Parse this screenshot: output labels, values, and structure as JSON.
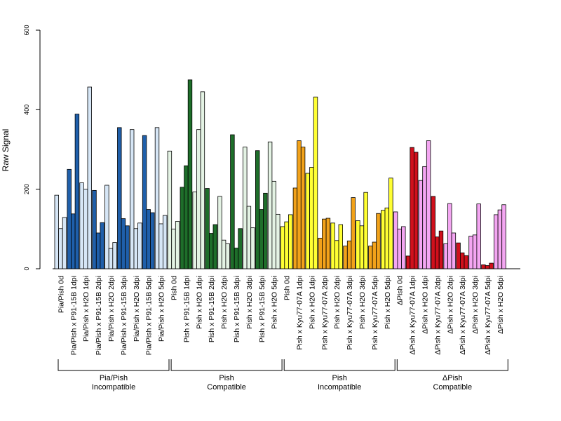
{
  "chart_data": {
    "type": "bar",
    "ylabel": "Raw Signal",
    "ylim": [
      0,
      600
    ],
    "yticks": [
      0,
      200,
      400,
      600
    ],
    "grid": false,
    "categories": [
      "Pia/Pish 0d",
      "Pia/Pish x P91-15B 1dpi",
      "Pia/Pish x H2O 1dpi",
      "Pia/Pish x P91-15B 2dpi",
      "Pia/Pish x H2O 2dpi",
      "Pia/Pish x P91-15B 3dpi",
      "Pia/Pish x H2O 3dpi",
      "Pia/Pish x P91-15B 5dpi",
      "Pia/Pish x H2O 5dpi",
      "Pish 0d",
      "Pish x P91-15B 1dpi",
      "Pish x H2O 1dpi",
      "Pish x P91-15B 2dpi",
      "Pish x H2O 2dpi",
      "Pish x P91-15B 3dpi",
      "Pish x H2O 3dpi",
      "Pish x P91-15B 5dpi",
      "Pish x H2O 5dpi",
      "Pish 0d",
      "Pish x Kyu77-07A 1dpi",
      "Pish x H2O 1dpi",
      "Pish x Kyu77-07A 2dpi",
      "Pish x H2O 2dpi",
      "Pish x Kyu77-07A 3dpi",
      "Pish x H2O 3dpi",
      "Pish x Kyu77-07A 5dpi",
      "Pish x H2O 5dpi",
      "ΔPish 0d",
      "ΔPish x Kyu77-07A 1dpi",
      "ΔPish x H2O 1dpi",
      "ΔPish x Kyu77-07A 2dpi",
      "ΔPish x H2O 2dpi",
      "ΔPish x Kyu77-07A 3dpi",
      "ΔPish x H2O 3dpi",
      "ΔPish x Kyu77-07A 5dpi",
      "ΔPish x H2O 5dpi"
    ],
    "values": [
      [
        185,
        101,
        129
      ],
      [
        250,
        138,
        389
      ],
      [
        216,
        200,
        457
      ],
      [
        197,
        90,
        116
      ],
      [
        210,
        51,
        66
      ],
      [
        355,
        126,
        108
      ],
      [
        350,
        101,
        115
      ],
      [
        335,
        149,
        141
      ],
      [
        355,
        113,
        134
      ],
      [
        296,
        100,
        119
      ],
      [
        205,
        259,
        475
      ],
      [
        193,
        350,
        445
      ],
      [
        202,
        89,
        111
      ],
      [
        182,
        72,
        63
      ],
      [
        337,
        52,
        101
      ],
      [
        306,
        157,
        103
      ],
      [
        297,
        149,
        190
      ],
      [
        319,
        220,
        137
      ],
      [
        106,
        118,
        136
      ],
      [
        203,
        322,
        306
      ],
      [
        240,
        255,
        432
      ],
      [
        77,
        125,
        127
      ],
      [
        115,
        71,
        111
      ],
      [
        57,
        70,
        179
      ],
      [
        121,
        108,
        192
      ],
      [
        57,
        67,
        139
      ],
      [
        147,
        153,
        228
      ],
      [
        143,
        100,
        106
      ],
      [
        32,
        305,
        293
      ],
      [
        222,
        257,
        322
      ],
      [
        182,
        80,
        95
      ],
      [
        63,
        164,
        90
      ],
      [
        65,
        40,
        33
      ],
      [
        82,
        85,
        163
      ],
      [
        10,
        8,
        14
      ],
      [
        136,
        148,
        161
      ]
    ],
    "groups": [
      {
        "line1": "Pia/Pish",
        "line2": "Incompatible",
        "start": 0,
        "end": 8,
        "colors": [
          "#d6e6f6",
          "#1f5faa"
        ]
      },
      {
        "line1": "Pish",
        "line2": "Compatible",
        "start": 9,
        "end": 17,
        "colors": [
          "#e4f3e4",
          "#1e6e2a"
        ]
      },
      {
        "line1": "Pish",
        "line2": "Incompatible",
        "start": 18,
        "end": 26,
        "colors": [
          "#ffff33",
          "#f2a21a"
        ]
      },
      {
        "line1": "ΔPish",
        "line2": "Compatible",
        "start": 27,
        "end": 35,
        "colors": [
          "#f4a6f2",
          "#d0101c"
        ]
      }
    ]
  }
}
